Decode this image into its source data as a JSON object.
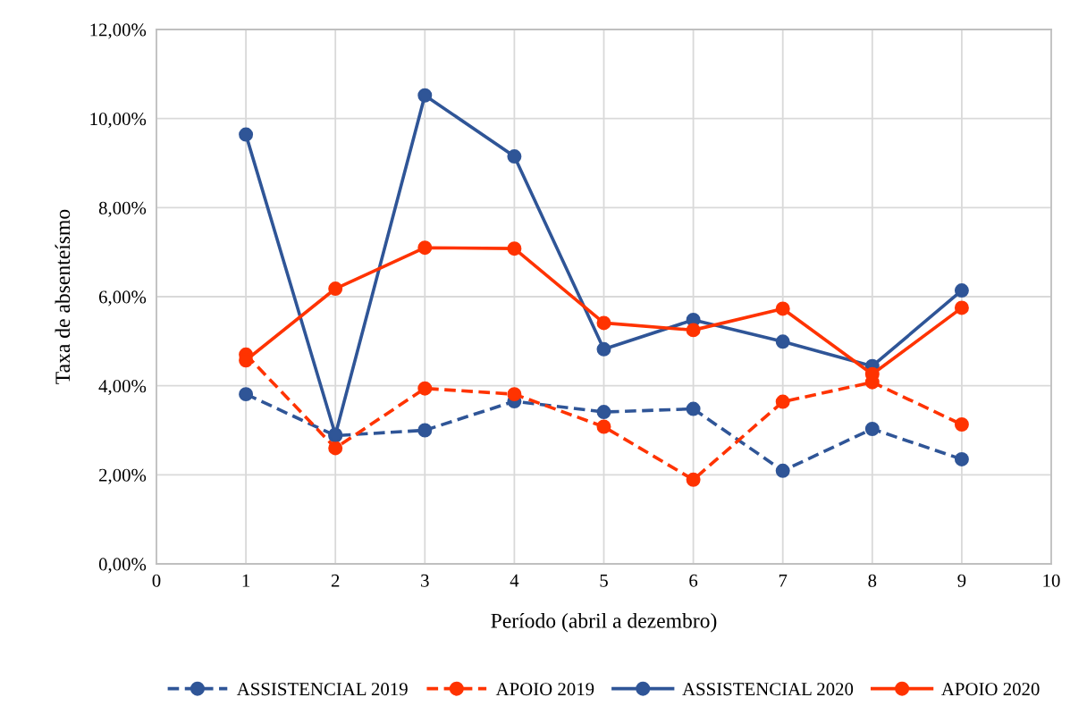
{
  "chart_data": {
    "type": "line",
    "xlabel": "Período (abril a dezembro)",
    "ylabel": "Taxa de absenteísmo",
    "x": [
      1,
      2,
      3,
      4,
      5,
      6,
      7,
      8,
      9
    ],
    "series": [
      {
        "name": "ASSISTENCIAL 2019",
        "color": "#2f5597",
        "line_style": "dashed",
        "values": [
          3.81,
          2.88,
          3.0,
          3.65,
          3.41,
          3.48,
          2.09,
          3.03,
          2.35
        ]
      },
      {
        "name": "APOIO 2019",
        "color": "#ff3300",
        "line_style": "dashed",
        "values": [
          4.7,
          2.6,
          3.94,
          3.81,
          3.08,
          1.89,
          3.64,
          4.08,
          3.13
        ]
      },
      {
        "name": "ASSISTENCIAL 2020",
        "color": "#2f5597",
        "line_style": "solid",
        "values": [
          9.64,
          2.9,
          10.52,
          9.15,
          4.82,
          5.48,
          4.99,
          4.44,
          6.14
        ]
      },
      {
        "name": "APOIO 2020",
        "color": "#ff3300",
        "line_style": "solid",
        "values": [
          4.57,
          6.18,
          7.1,
          7.08,
          5.41,
          5.25,
          5.73,
          4.26,
          5.75
        ]
      }
    ],
    "xlim": [
      0,
      10
    ],
    "xticks": [
      0,
      1,
      2,
      3,
      4,
      5,
      6,
      7,
      8,
      9,
      10
    ],
    "ylim": [
      0,
      12
    ],
    "yticks": [
      {
        "value": 0,
        "label": "0,00%"
      },
      {
        "value": 2,
        "label": "2,00%"
      },
      {
        "value": 4,
        "label": "4,00%"
      },
      {
        "value": 6,
        "label": "6,00%"
      },
      {
        "value": 8,
        "label": "8,00%"
      },
      {
        "value": 10,
        "label": "10,00%"
      },
      {
        "value": 12,
        "label": "12,00%"
      }
    ],
    "grid": true,
    "legend": "bottom",
    "marker": "circle"
  }
}
